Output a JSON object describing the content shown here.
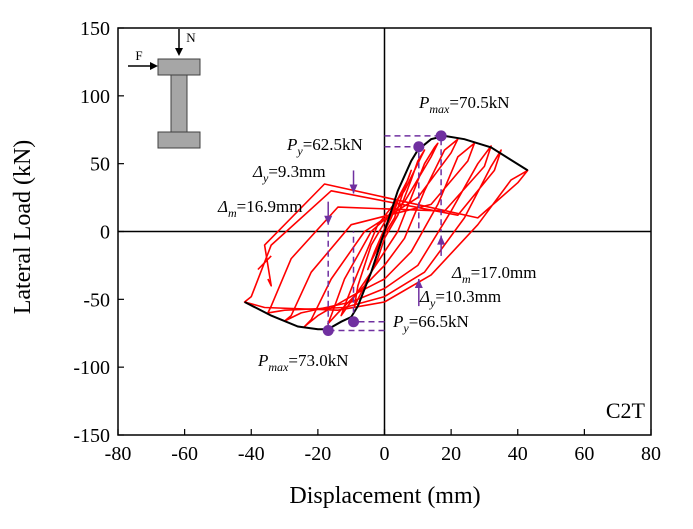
{
  "chart_data": {
    "type": "line",
    "xlabel": "Displacement (mm)",
    "ylabel": "Lateral Load (kN)",
    "xlim": [
      -80,
      80
    ],
    "ylim": [
      -150,
      150
    ],
    "xticks": [
      -80,
      -60,
      -40,
      -20,
      0,
      20,
      40,
      60,
      80
    ],
    "yticks": [
      -150,
      -100,
      -50,
      0,
      50,
      100,
      150
    ],
    "grid": false,
    "panel_label": "C2T",
    "hysteresis": {
      "color": "#ff0000",
      "loops": [
        [
          [
            0,
            0
          ],
          [
            1,
            8
          ],
          [
            1.5,
            12
          ],
          [
            1,
            6
          ],
          [
            -1,
            -6
          ],
          [
            -1.5,
            -10
          ],
          [
            -1,
            -5
          ],
          [
            0,
            0
          ]
        ],
        [
          [
            0,
            0
          ],
          [
            2,
            10
          ],
          [
            4,
            22
          ],
          [
            3,
            18
          ],
          [
            0,
            2
          ],
          [
            -3,
            -15
          ],
          [
            -5,
            -28
          ],
          [
            -4,
            -22
          ],
          [
            0,
            -2
          ]
        ],
        [
          [
            0,
            -2
          ],
          [
            3,
            10
          ],
          [
            6,
            32
          ],
          [
            8,
            45
          ],
          [
            7,
            38
          ],
          [
            2,
            15
          ],
          [
            -4,
            -10
          ],
          [
            -8,
            -40
          ],
          [
            -9,
            -55
          ],
          [
            -7,
            -45
          ],
          [
            -2,
            -20
          ],
          [
            0,
            -5
          ]
        ],
        [
          [
            0,
            -5
          ],
          [
            4,
            12
          ],
          [
            8,
            38
          ],
          [
            10,
            52
          ],
          [
            12,
            60
          ],
          [
            11,
            55
          ],
          [
            6,
            30
          ],
          [
            -2,
            5
          ],
          [
            -8,
            -30
          ],
          [
            -12,
            -55
          ],
          [
            -13,
            -62
          ],
          [
            -11,
            -55
          ],
          [
            -4,
            -30
          ],
          [
            0,
            -15
          ]
        ],
        [
          [
            0,
            -15
          ],
          [
            4,
            0
          ],
          [
            8,
            25
          ],
          [
            12,
            50
          ],
          [
            15,
            62
          ],
          [
            16,
            65
          ],
          [
            14,
            55
          ],
          [
            6,
            22
          ],
          [
            -4,
            0
          ],
          [
            -12,
            -35
          ],
          [
            -16,
            -62
          ],
          [
            -17,
            -68
          ],
          [
            -14,
            -60
          ],
          [
            -6,
            -40
          ],
          [
            0,
            -25
          ]
        ],
        [
          [
            0,
            -25
          ],
          [
            6,
            -5
          ],
          [
            12,
            30
          ],
          [
            18,
            60
          ],
          [
            22,
            68
          ],
          [
            20,
            58
          ],
          [
            10,
            25
          ],
          [
            -6,
            0
          ],
          [
            -16,
            -35
          ],
          [
            -22,
            -65
          ],
          [
            -24,
            -70
          ],
          [
            -20,
            -62
          ],
          [
            -8,
            -45
          ],
          [
            0,
            -35
          ]
        ],
        [
          [
            0,
            -35
          ],
          [
            8,
            -15
          ],
          [
            16,
            20
          ],
          [
            22,
            55
          ],
          [
            27,
            65
          ],
          [
            25,
            52
          ],
          [
            14,
            20
          ],
          [
            -10,
            5
          ],
          [
            -22,
            -30
          ],
          [
            -28,
            -62
          ],
          [
            -30,
            -66
          ],
          [
            -25,
            -60
          ],
          [
            -10,
            -52
          ],
          [
            0,
            -42
          ]
        ],
        [
          [
            0,
            -42
          ],
          [
            10,
            -25
          ],
          [
            20,
            15
          ],
          [
            28,
            50
          ],
          [
            32,
            63
          ],
          [
            30,
            48
          ],
          [
            18,
            15
          ],
          [
            -14,
            18
          ],
          [
            -28,
            -20
          ],
          [
            -34,
            -55
          ],
          [
            -35,
            -60
          ],
          [
            -30,
            -58
          ],
          [
            -12,
            -56
          ],
          [
            0,
            -48
          ]
        ],
        [
          [
            0,
            -48
          ],
          [
            12,
            -30
          ],
          [
            24,
            10
          ],
          [
            32,
            48
          ],
          [
            35,
            60
          ],
          [
            33,
            45
          ],
          [
            22,
            12
          ],
          [
            -16,
            30
          ],
          [
            -34,
            -10
          ],
          [
            -40,
            -48
          ],
          [
            -42,
            -52
          ],
          [
            -36,
            -56
          ],
          [
            -14,
            -58
          ],
          [
            0,
            -52
          ]
        ],
        [
          [
            0,
            -52
          ],
          [
            14,
            -32
          ],
          [
            28,
            5
          ],
          [
            38,
            38
          ],
          [
            43,
            45
          ],
          [
            40,
            36
          ],
          [
            28,
            10
          ],
          [
            -18,
            35
          ],
          [
            -36,
            -10
          ],
          [
            -34,
            -40
          ],
          [
            -35,
            -35
          ]
        ]
      ],
      "final_tail": [
        [
          -38,
          -28
        ],
        [
          -34,
          -18
        ]
      ]
    },
    "skeleton": {
      "color": "#000000",
      "positive": [
        [
          0,
          0
        ],
        [
          4,
          30
        ],
        [
          8,
          52
        ],
        [
          10,
          60
        ],
        [
          14,
          68
        ],
        [
          18,
          70.5
        ],
        [
          24,
          68
        ],
        [
          32,
          62
        ],
        [
          43,
          45
        ]
      ],
      "negative": [
        [
          0,
          0
        ],
        [
          -4,
          -30
        ],
        [
          -8,
          -55
        ],
        [
          -10,
          -63
        ],
        [
          -13,
          -66.5
        ],
        [
          -17,
          -72
        ],
        [
          -20,
          -72
        ],
        [
          -26,
          -70
        ],
        [
          -34,
          -62
        ],
        [
          -42,
          -52
        ]
      ]
    },
    "markers": {
      "color": "#7030a0",
      "points": [
        {
          "x": 10.3,
          "y": 62.5
        },
        {
          "x": 17.0,
          "y": 70.5
        },
        {
          "x": -9.3,
          "y": -66.5
        },
        {
          "x": -16.9,
          "y": -73.0
        }
      ]
    },
    "guides": {
      "color": "#7030a0",
      "lines": [
        [
          [
            0,
            62.5
          ],
          [
            10.3,
            62.5
          ],
          [
            10.3,
            0
          ]
        ],
        [
          [
            0,
            70.5
          ],
          [
            17.0,
            70.5
          ],
          [
            17.0,
            0
          ]
        ],
        [
          [
            0,
            -66.5
          ],
          [
            -9.3,
            -66.5
          ],
          [
            -9.3,
            0
          ]
        ],
        [
          [
            0,
            -73.0
          ],
          [
            -16.9,
            -73.0
          ],
          [
            -16.9,
            0
          ]
        ]
      ]
    },
    "arrows": {
      "color": "#7030a0",
      "items": [
        {
          "x": -9.3,
          "y_from": 45,
          "y_to": 28
        },
        {
          "x": -16.9,
          "y_from": 22,
          "y_to": 5
        },
        {
          "x": 17.0,
          "y_from": -18,
          "y_to": -3
        },
        {
          "x": 10.3,
          "y_from": -55,
          "y_to": -35
        }
      ]
    },
    "annotations": {
      "pmax_pos": {
        "sym": "P",
        "sub": "max",
        "val": "=70.5kN"
      },
      "py_pos": {
        "sym": "P",
        "sub": "y",
        "val": "=62.5kN"
      },
      "dy_neg": {
        "sym": "Δ",
        "sub": "y",
        "val": "=9.3mm"
      },
      "dm_neg": {
        "sym": "Δ",
        "sub": "m",
        "val": "=16.9mm"
      },
      "dm_pos": {
        "sym": "Δ",
        "sub": "m",
        "val": "=17.0mm"
      },
      "dy_pos": {
        "sym": "Δ",
        "sub": "y",
        "val": "=10.3mm"
      },
      "py_neg": {
        "sym": "P",
        "sub": "y",
        "val": "=66.5kN"
      },
      "pmax_neg": {
        "sym": "P",
        "sub": "max",
        "val": "=73.0kN"
      }
    },
    "inset": {
      "force_label": "F",
      "axial_label": "N"
    }
  }
}
